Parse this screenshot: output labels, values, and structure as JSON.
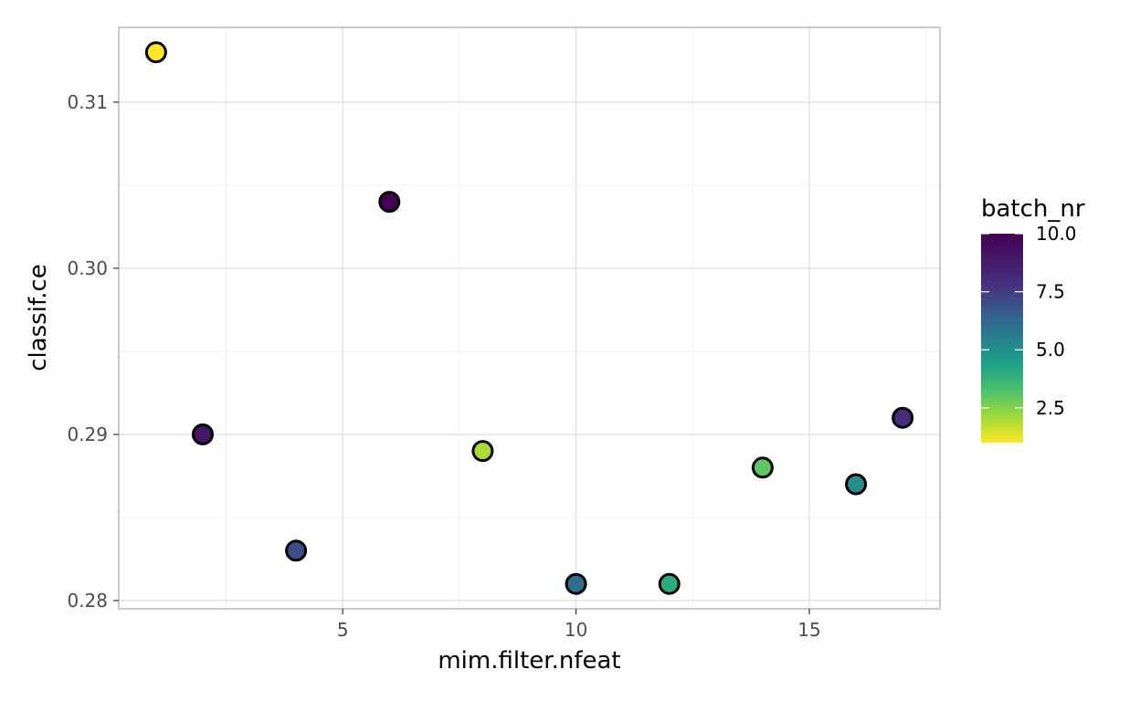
{
  "chart_data": {
    "type": "scatter",
    "xlabel": "mim.filter.nfeat",
    "ylabel": "classif.ce",
    "xlim": [
      0.2,
      17.8
    ],
    "ylim": [
      0.2795,
      0.3145
    ],
    "x_ticks": [
      5,
      10,
      15
    ],
    "x_tick_labels": [
      "5",
      "10",
      "15"
    ],
    "y_ticks": [
      0.28,
      0.29,
      0.3,
      0.31
    ],
    "y_tick_labels": [
      "0.28",
      "0.29",
      "0.30",
      "0.31"
    ],
    "grid": true,
    "legend": {
      "title": "batch_nr",
      "placement": "right",
      "range": [
        1,
        10
      ],
      "ticks": [
        2.5,
        5.0,
        7.5,
        10.0
      ],
      "tick_labels": [
        "2.5",
        "5.0",
        "7.5",
        "10.0"
      ],
      "colormap": "viridis"
    },
    "points": [
      {
        "x": 1,
        "y": 0.313,
        "batch_nr": 1
      },
      {
        "x": 2,
        "y": 0.29,
        "batch_nr": 9
      },
      {
        "x": 4,
        "y": 0.283,
        "batch_nr": 7
      },
      {
        "x": 6,
        "y": 0.304,
        "batch_nr": 10
      },
      {
        "x": 8,
        "y": 0.289,
        "batch_nr": 2
      },
      {
        "x": 10,
        "y": 0.281,
        "batch_nr": 6
      },
      {
        "x": 12,
        "y": 0.281,
        "batch_nr": 4
      },
      {
        "x": 14,
        "y": 0.288,
        "batch_nr": 3
      },
      {
        "x": 16,
        "y": 0.287,
        "batch_nr": 5
      },
      {
        "x": 17,
        "y": 0.291,
        "batch_nr": 8
      }
    ]
  }
}
